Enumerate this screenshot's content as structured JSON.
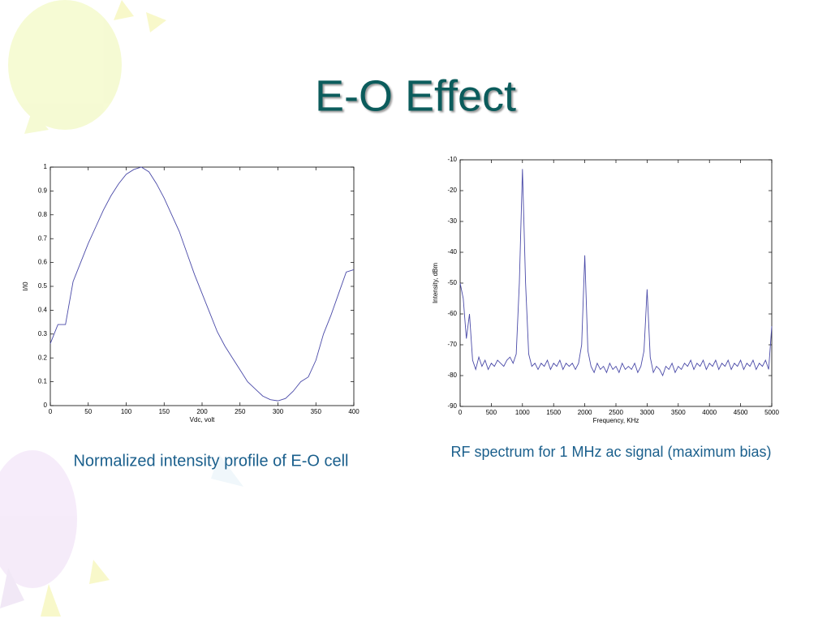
{
  "slide_title": "E-O Effect",
  "chart_data": [
    {
      "type": "line",
      "caption": "Normalized intensity profile of E-O cell",
      "xlabel": "Vdc, volt",
      "ylabel": "I/I0",
      "x": [
        0,
        10,
        20,
        30,
        40,
        50,
        60,
        70,
        80,
        90,
        100,
        110,
        120,
        130,
        140,
        150,
        160,
        170,
        180,
        190,
        200,
        210,
        220,
        230,
        240,
        250,
        260,
        270,
        280,
        290,
        300,
        310,
        320,
        330,
        340,
        350,
        360,
        370,
        380,
        390,
        400
      ],
      "series": [
        {
          "color": "#4a4aa8",
          "values": [
            0.26,
            0.34,
            0.34,
            0.52,
            0.6,
            0.68,
            0.75,
            0.82,
            0.88,
            0.93,
            0.97,
            0.99,
            1.0,
            0.98,
            0.93,
            0.87,
            0.8,
            0.73,
            0.64,
            0.55,
            0.47,
            0.39,
            0.31,
            0.25,
            0.2,
            0.15,
            0.1,
            0.07,
            0.04,
            0.025,
            0.02,
            0.03,
            0.06,
            0.1,
            0.12,
            0.19,
            0.3,
            0.38,
            0.47,
            0.56,
            0.57
          ]
        }
      ],
      "xlim": [
        0,
        400
      ],
      "xticks": [
        0,
        50,
        100,
        150,
        200,
        250,
        300,
        350,
        400
      ],
      "ylim": [
        0,
        1
      ],
      "yticks": [
        0,
        0.1,
        0.2,
        0.3,
        0.4,
        0.5,
        0.6,
        0.7,
        0.8,
        0.9,
        1
      ]
    },
    {
      "type": "line",
      "caption": "RF spectrum for 1 MHz ac signal (maximum bias)",
      "xlabel": "Frequency, KHz",
      "ylabel": "Intensity, dBm",
      "x": [
        0,
        50,
        100,
        150,
        200,
        250,
        300,
        350,
        400,
        450,
        500,
        550,
        600,
        650,
        700,
        750,
        800,
        850,
        900,
        950,
        1000,
        1050,
        1100,
        1150,
        1200,
        1250,
        1300,
        1350,
        1400,
        1450,
        1500,
        1550,
        1600,
        1650,
        1700,
        1750,
        1800,
        1850,
        1900,
        1950,
        2000,
        2050,
        2100,
        2150,
        2200,
        2250,
        2300,
        2350,
        2400,
        2450,
        2500,
        2550,
        2600,
        2650,
        2700,
        2750,
        2800,
        2850,
        2900,
        2950,
        3000,
        3050,
        3100,
        3150,
        3200,
        3250,
        3300,
        3350,
        3400,
        3450,
        3500,
        3550,
        3600,
        3650,
        3700,
        3750,
        3800,
        3850,
        3900,
        3950,
        4000,
        4050,
        4100,
        4150,
        4200,
        4250,
        4300,
        4350,
        4400,
        4450,
        4500,
        4550,
        4600,
        4650,
        4700,
        4750,
        4800,
        4850,
        4900,
        4950,
        5000
      ],
      "series": [
        {
          "color": "#4a4aa8",
          "values": [
            -50,
            -55,
            -68,
            -60,
            -75,
            -78,
            -74,
            -77,
            -75,
            -78,
            -76,
            -77,
            -75,
            -76,
            -77,
            -75,
            -74,
            -76,
            -73,
            -50,
            -13,
            -50,
            -73,
            -77,
            -76,
            -78,
            -76,
            -77,
            -75,
            -78,
            -76,
            -77,
            -75,
            -78,
            -76,
            -77,
            -76,
            -78,
            -76,
            -70,
            -41,
            -72,
            -77,
            -79,
            -76,
            -78,
            -77,
            -79,
            -76,
            -78,
            -77,
            -79,
            -76,
            -78,
            -77,
            -78,
            -76,
            -79,
            -77,
            -72,
            -52,
            -74,
            -79,
            -77,
            -78,
            -80,
            -77,
            -78,
            -76,
            -79,
            -77,
            -78,
            -76,
            -77,
            -75,
            -78,
            -76,
            -77,
            -75,
            -78,
            -76,
            -77,
            -75,
            -78,
            -76,
            -77,
            -75,
            -78,
            -76,
            -77,
            -75,
            -78,
            -76,
            -77,
            -75,
            -78,
            -76,
            -77,
            -75,
            -78,
            -64
          ]
        }
      ],
      "xlim": [
        0,
        5000
      ],
      "xticks": [
        0,
        500,
        1000,
        1500,
        2000,
        2500,
        3000,
        3500,
        4000,
        4500,
        5000
      ],
      "ylim": [
        -90,
        -10
      ],
      "yticks": [
        -90,
        -80,
        -70,
        -60,
        -50,
        -40,
        -30,
        -20,
        -10
      ]
    }
  ]
}
